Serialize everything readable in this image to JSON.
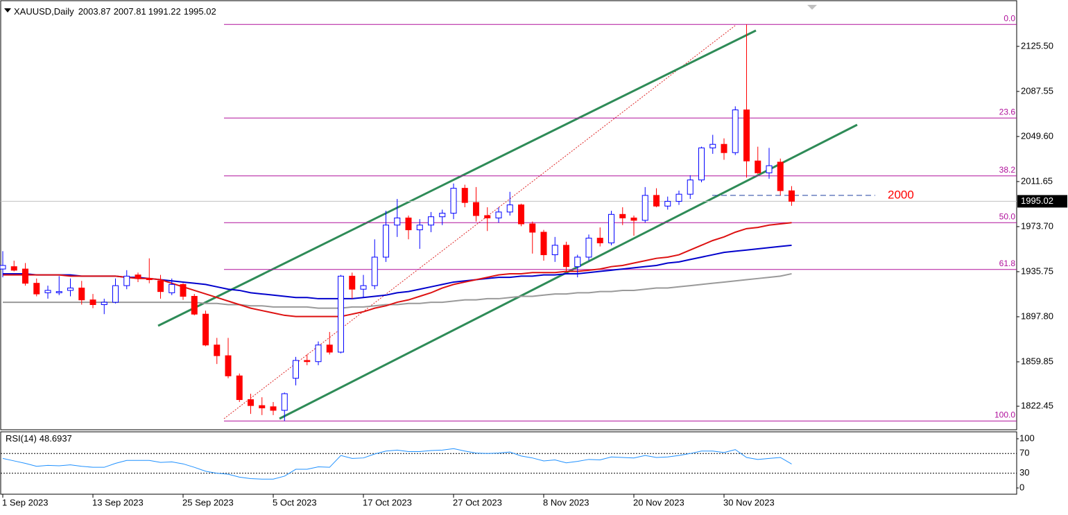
{
  "chart_data": {
    "type": "candlestick",
    "symbol": "XAUUSD,Daily",
    "categories": [
      "1 Sep 2023",
      null,
      null,
      null,
      null,
      null,
      null,
      null,
      "13 Sep 2023",
      null,
      null,
      null,
      null,
      null,
      null,
      null,
      "25 Sep 2023",
      null,
      null,
      null,
      null,
      null,
      null,
      null,
      "5 Oct 2023",
      null,
      null,
      null,
      null,
      null,
      null,
      null,
      "17 Oct 2023",
      null,
      null,
      null,
      null,
      null,
      null,
      null,
      "27 Oct 2023",
      null,
      null,
      null,
      null,
      null,
      null,
      null,
      "8 Nov 2023",
      null,
      null,
      null,
      null,
      null,
      null,
      null,
      "20 Nov 2023",
      null,
      null,
      null,
      null,
      null,
      null,
      null,
      "30 Nov 2023",
      null,
      null,
      null,
      null,
      null,
      null
    ],
    "open": [
      1938,
      1940,
      1938,
      1926,
      1918,
      1918,
      1920,
      1922,
      1912,
      1908,
      1910,
      1924,
      1933,
      1930,
      1928,
      1918,
      1925,
      1915,
      1900,
      1874,
      1865,
      1848,
      1828,
      1823,
      1822,
      1819,
      1846,
      1861,
      1860,
      1874,
      1868,
      1932,
      1921,
      1924,
      1948,
      1975,
      1981,
      1971,
      1975,
      1982,
      1985,
      2006,
      1994,
      1983,
      1981,
      1986,
      1992,
      1976,
      1969,
      1950,
      1958,
      1940,
      1948,
      1964,
      1960,
      1984,
      1981,
      1979,
      2000,
      1991,
      1995,
      2001,
      2013,
      2040,
      2043,
      2036,
      2072,
      2029,
      2019,
      2028,
      2003.87
    ],
    "high": [
      1953,
      1945,
      1943,
      1930,
      1924,
      1932,
      1930,
      1928,
      1917,
      1913,
      1930,
      1937,
      1935,
      1947,
      1933,
      1930,
      1926,
      1917,
      1903,
      1880,
      1880,
      1850,
      1833,
      1830,
      1826,
      1834,
      1864,
      1866,
      1877,
      1885,
      1933,
      1935,
      1933,
      1963,
      1987,
      1997,
      1983,
      1980,
      1986,
      1988,
      2010,
      2009,
      2007,
      1990,
      1990,
      2003,
      1993,
      1978,
      1971,
      1965,
      1961,
      1950,
      1967,
      1973,
      1987,
      1990,
      1983,
      2007,
      2006,
      1999,
      2004,
      2017,
      2041,
      2051,
      2048,
      2075,
      2144,
      2041,
      2040,
      2031,
      2007.81
    ],
    "low": [
      1931,
      1936,
      1924,
      1915,
      1913,
      1916,
      1915,
      1908,
      1905,
      1900,
      1909,
      1921,
      1927,
      1926,
      1913,
      1916,
      1912,
      1899,
      1873,
      1858,
      1846,
      1826,
      1816,
      1815,
      1815,
      1810,
      1840,
      1857,
      1857,
      1866,
      1867,
      1913,
      1914,
      1921,
      1944,
      1965,
      1963,
      1955,
      1969,
      1975,
      1980,
      1990,
      1978,
      1970,
      1977,
      1983,
      1974,
      1951,
      1945,
      1944,
      1935,
      1931,
      1945,
      1957,
      1958,
      1975,
      1966,
      1977,
      1990,
      1988,
      1992,
      1997,
      2011,
      2035,
      2030,
      2034,
      2015,
      2018,
      2014,
      2000,
      1991.22
    ],
    "close": [
      1941,
      1937,
      1926,
      1917,
      1920,
      1919,
      1922,
      1912,
      1908,
      1910,
      1924,
      1932,
      1930,
      1929,
      1919,
      1925,
      1915,
      1900,
      1874,
      1865,
      1848,
      1828,
      1823,
      1821,
      1819,
      1833,
      1861,
      1860,
      1874,
      1868,
      1932,
      1921,
      1924,
      1948,
      1975,
      1981,
      1971,
      1975,
      1982,
      1985,
      2006,
      1994,
      1983,
      1981,
      1986,
      1992,
      1976,
      1969,
      1950,
      1958,
      1940,
      1948,
      1964,
      1960,
      1984,
      1981,
      1979,
      2000,
      1991,
      1995,
      2001,
      2013,
      2040,
      2043,
      2036,
      2072,
      2029,
      2019,
      2025,
      2004,
      1995.02
    ],
    "up_color": "#0000ff",
    "down_color": "#ff0000",
    "lines": [
      {
        "color": "#999999",
        "values": [
          1910,
          1910,
          1910,
          1910,
          1910,
          1910,
          1910,
          1910,
          1910,
          1910,
          1910,
          1910,
          1910,
          1910,
          1910,
          1910,
          1910,
          1910,
          1909,
          1909,
          1908,
          1908,
          1907,
          1907,
          1906,
          1906,
          1906,
          1906,
          1905,
          1905,
          1905,
          1906,
          1906,
          1907,
          1908,
          1908,
          1909,
          1909,
          1910,
          1910,
          1911,
          1912,
          1912,
          1913,
          1913,
          1914,
          1915,
          1915,
          1916,
          1917,
          1917,
          1918,
          1918,
          1919,
          1919,
          1920,
          1920,
          1921,
          1922,
          1922,
          1923,
          1924,
          1925,
          1926,
          1927,
          1928,
          1929,
          1930,
          1931,
          1932,
          1934
        ]
      },
      {
        "color": "#0000cc",
        "values": [
          1934,
          1934,
          1934,
          1933,
          1933,
          1933,
          1933,
          1932,
          1932,
          1932,
          1932,
          1931,
          1931,
          1930,
          1929,
          1928,
          1927,
          1926,
          1925,
          1923,
          1921,
          1920,
          1918,
          1917,
          1916,
          1915,
          1914,
          1914,
          1913,
          1913,
          1913,
          1913,
          1914,
          1915,
          1916,
          1918,
          1919,
          1921,
          1923,
          1925,
          1927,
          1928,
          1929,
          1930,
          1931,
          1931,
          1932,
          1932,
          1933,
          1933,
          1934,
          1934,
          1935,
          1936,
          1937,
          1938,
          1939,
          1940,
          1941,
          1943,
          1944,
          1946,
          1948,
          1950,
          1952,
          1953,
          1954,
          1955,
          1956,
          1957,
          1958
        ]
      },
      {
        "color": "#dd1111",
        "values": [
          1933,
          1933,
          1933,
          1933,
          1933,
          1933,
          1932,
          1932,
          1932,
          1932,
          1932,
          1931,
          1930,
          1930,
          1929,
          1926,
          1923,
          1920,
          1917,
          1914,
          1911,
          1908,
          1905,
          1903,
          1901,
          1899,
          1898,
          1898,
          1898,
          1898,
          1898,
          1900,
          1902,
          1905,
          1907,
          1910,
          1912,
          1915,
          1918,
          1922,
          1925,
          1927,
          1929,
          1931,
          1933,
          1934,
          1934,
          1935,
          1935,
          1935,
          1936,
          1936,
          1937,
          1938,
          1940,
          1941,
          1943,
          1945,
          1947,
          1948,
          1950,
          1954,
          1958,
          1962,
          1965,
          1969,
          1972,
          1973,
          1975,
          1976,
          1977
        ]
      }
    ],
    "ylim": [
      1802.64,
      2163.96
    ],
    "yticks": [
      {
        "value": 2125.5,
        "label": "2125.50"
      },
      2087.55,
      {
        "value": 2049.6,
        "label": "2049.60"
      },
      2011.65,
      {
        "value": 1973.7,
        "label": "1973.70"
      },
      1935.75,
      {
        "value": 1897.8,
        "label": "1897.80"
      },
      1859.85,
      1822.45
    ],
    "fib": [
      {
        "ratio": {
          "value": 0,
          "label": "0.0"
        },
        "price": 2144
      },
      {
        "ratio": 23.6,
        "price": 2065.2
      },
      {
        "ratio": 38.2,
        "price": 2016.4
      },
      {
        "ratio": {
          "value": 50,
          "label": "50.0"
        },
        "price": 1977
      },
      {
        "ratio": 61.8,
        "price": 1937.6
      },
      {
        "ratio": {
          "value": 100,
          "label": "100.0"
        },
        "price": 1810
      }
    ],
    "level_line": {
      "value": 2000,
      "color": "#ff0000"
    },
    "rsi": {
      "name": "RSI(14)",
      "color": "#1e90ff",
      "ylim": [
        -12.7,
        114.1
      ],
      "yticks": [
        100,
        70,
        30,
        0
      ],
      "values": [
        60,
        55,
        50,
        44,
        46,
        45,
        47,
        44,
        42,
        42,
        50,
        56,
        56,
        56,
        52,
        53,
        49,
        42,
        34,
        30,
        28,
        22,
        19,
        18,
        18,
        24,
        38,
        38,
        43,
        42,
        66,
        60,
        61,
        69,
        75,
        77,
        74,
        74,
        76,
        77,
        80,
        75,
        71,
        70,
        71,
        73,
        65,
        61,
        55,
        57,
        51,
        54,
        58,
        57,
        63,
        62,
        61,
        66,
        62,
        63,
        66,
        70,
        75,
        75,
        72,
        78,
        62,
        58,
        60,
        62,
        48.6937
      ]
    }
  }
}
